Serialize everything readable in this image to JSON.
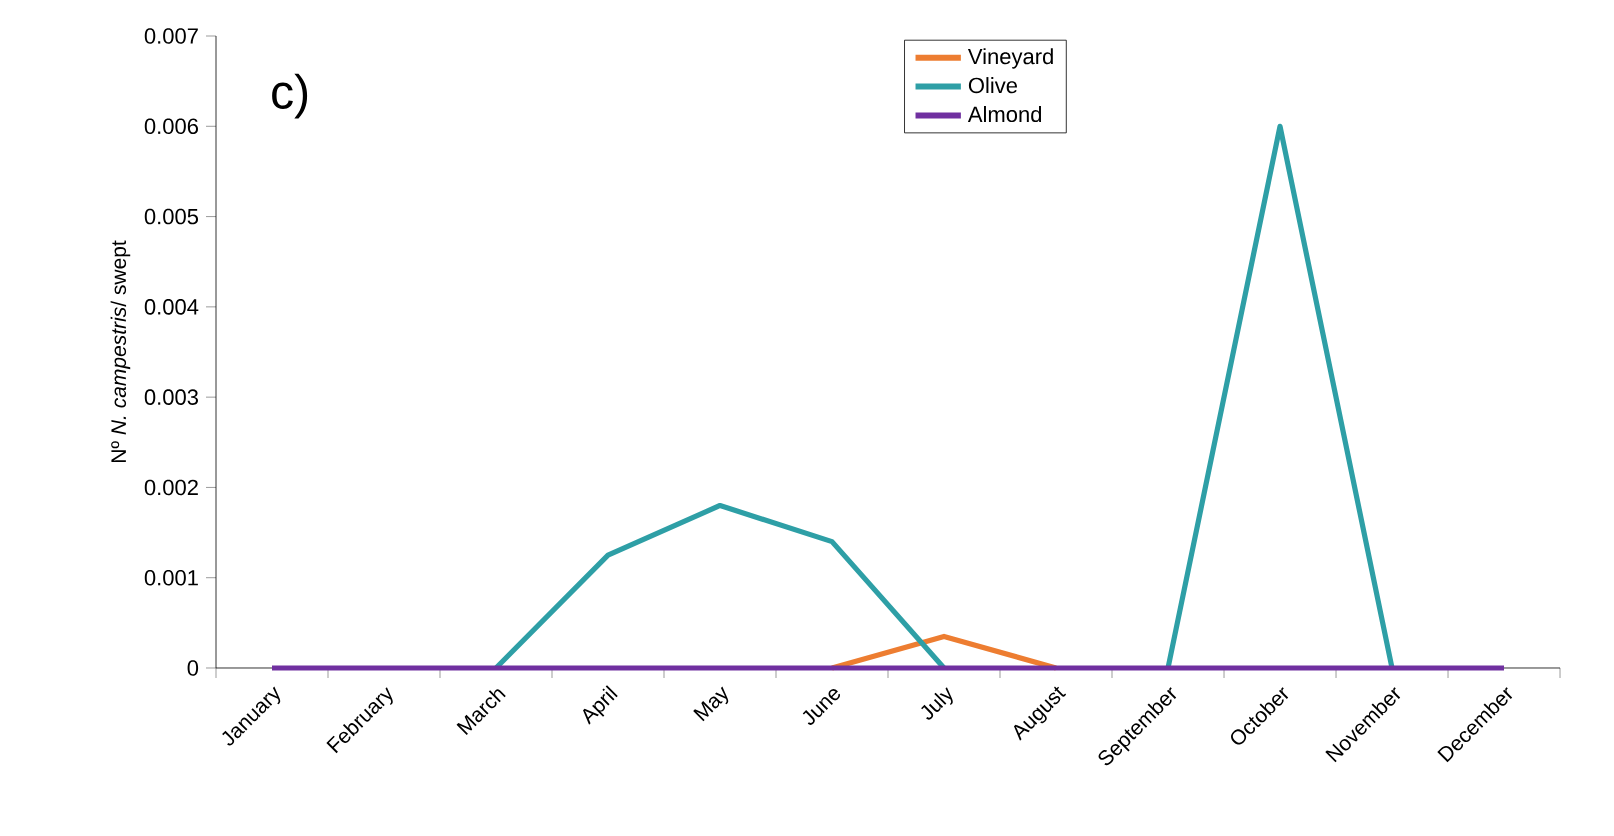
{
  "chart_data": {
    "type": "line",
    "title": "c)",
    "ylabel": "Nº *N. campestris*/ swept",
    "categories": [
      "January",
      "February",
      "March",
      "April",
      "May",
      "June",
      "July",
      "August",
      "September",
      "October",
      "November",
      "December"
    ],
    "series": [
      {
        "name": "Vineyard",
        "color": "#ed7d31",
        "values": [
          null,
          null,
          null,
          null,
          null,
          0,
          0.00035,
          0,
          null,
          null,
          null,
          null
        ]
      },
      {
        "name": "Olive",
        "color": "#2e9fa6",
        "values": [
          null,
          null,
          0,
          0.00125,
          0.0018,
          0.0014,
          0,
          null,
          0,
          0.006,
          0,
          null
        ]
      },
      {
        "name": "Almond",
        "color": "#7030a0",
        "values": [
          0,
          0,
          0,
          0,
          0,
          0,
          0,
          0,
          0,
          0,
          0,
          0
        ]
      }
    ],
    "ylim": [
      0,
      0.007
    ],
    "yticks": [
      0,
      0.001,
      0.002,
      0.003,
      0.004,
      0.005,
      0.006,
      0.007
    ],
    "grid": false,
    "legend": "top right",
    "marker": "none",
    "line_style": "solid"
  }
}
